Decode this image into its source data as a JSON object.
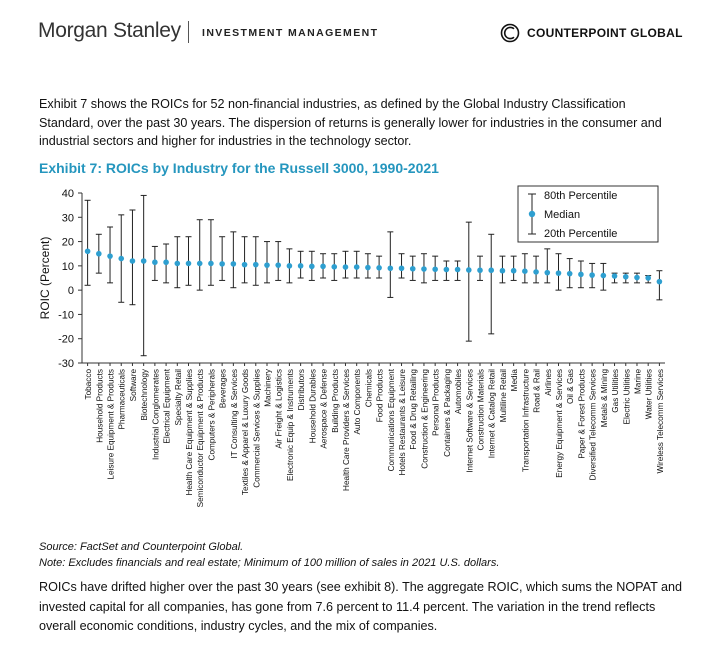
{
  "header": {
    "brand": "Morgan Stanley",
    "division": "INVESTMENT MANAGEMENT",
    "partner": "COUNTERPOINT GLOBAL"
  },
  "intro_text": "Exhibit 7 shows the ROICs for 52 non-financial industries, as defined by the Global Industry Classification Standard, over the past 30 years. The dispersion of returns is generally lower for industries in the consumer and industrial sectors and higher for industries in the technology sector.",
  "exhibit_title": "Exhibit 7: ROICs by Industry for the Russell 3000, 1990-2021",
  "source_note": "Source: FactSet and Counterpoint Global.",
  "note": "Note: Excludes financials and real estate; Minimum of 100 million of sales in 2021 U.S. dollars.",
  "outro_text": "ROICs have drifted higher over the past 30 years (see exhibit 8). The aggregate ROIC, which sums the NOPAT and invested capital for all companies, has gone from 7.6 percent to 11.4 percent. The variation in the trend reflects overall economic conditions, industry cycles, and the mix of companies.",
  "colors": {
    "median": "#2e9fd0",
    "whisker": "#222222",
    "title": "#2596be"
  },
  "chart_data": {
    "type": "errorbar",
    "ylabel": "ROIC (Percent)",
    "ylim": [
      -30,
      40
    ],
    "yticks": [
      -30,
      -20,
      -10,
      0,
      10,
      20,
      30,
      40
    ],
    "legend": {
      "position": "top-right",
      "p80": "80th Percentile",
      "median": "Median",
      "p20": "20th Percentile"
    },
    "categories": [
      "Tobacco",
      "Household Products",
      "Leisure Equipment & Products",
      "Pharmaceuticals",
      "Software",
      "Biotechnology",
      "Industrial Conglomerates",
      "Electrical Equipment",
      "Specialty Retail",
      "Health Care Equipment & Supplies",
      "Semiconductor Equipment & Products",
      "Computers & Peripherals",
      "Beverages",
      "IT Consulting & Services",
      "Textiles & Apparel & Luxury Goods",
      "Commercial Services & Supplies",
      "Machinery",
      "Air Freight & Logistics",
      "Electronic Equip & Instruments",
      "Distributors",
      "Household Durables",
      "Aerospace & Defense",
      "Building Products",
      "Health Care Providers & Services",
      "Auto Components",
      "Chemicals",
      "Food Products",
      "Communications Equipment",
      "Hotels Restaurants & Leisure",
      "Food & Drug Retailing",
      "Construction & Engineering",
      "Personal Products",
      "Containers & Packaging",
      "Automobiles",
      "Internet Software & Services",
      "Construction Materials",
      "Internet & Catalog Retail",
      "Multiline Retail",
      "Media",
      "Transportation Infrastructure",
      "Road & Rail",
      "Airlines",
      "Energy Equipment & Services",
      "Oil & Gas",
      "Paper & Forest Products",
      "Diversified Telecomm Services",
      "Metals & Mining",
      "Gas Utilities",
      "Electric Utilities",
      "Marine",
      "Water Utilities",
      "Wireless Telecomm Services"
    ],
    "series": [
      {
        "name": "80th Percentile",
        "values": [
          37,
          23,
          26,
          31,
          33,
          39,
          18,
          19,
          22,
          22,
          29,
          29,
          22,
          24,
          22,
          22,
          20,
          20,
          17,
          16,
          16,
          15,
          15,
          16,
          16,
          15,
          14,
          24,
          15,
          14,
          15,
          14,
          12,
          12,
          28,
          14,
          23,
          14,
          14,
          15,
          14,
          17,
          15,
          13,
          12,
          11,
          11,
          7,
          7,
          7,
          6,
          8
        ]
      },
      {
        "name": "Median",
        "values": [
          16,
          15,
          14,
          13,
          12,
          12,
          11.5,
          11.5,
          11,
          11,
          11,
          11,
          10.8,
          10.8,
          10.5,
          10.5,
          10.3,
          10.3,
          10,
          10,
          9.8,
          9.8,
          9.6,
          9.5,
          9.5,
          9.3,
          9.2,
          9,
          9,
          8.8,
          8.7,
          8.6,
          8.5,
          8.5,
          8.3,
          8.2,
          8.2,
          8,
          8,
          7.8,
          7.5,
          7.2,
          7,
          6.8,
          6.5,
          6.2,
          6,
          5.8,
          5.5,
          5.2,
          5,
          3.5
        ]
      },
      {
        "name": "20th Percentile",
        "values": [
          2,
          7,
          3,
          -5,
          -6,
          -27,
          4,
          3,
          1,
          2,
          0,
          2,
          4,
          1,
          3,
          2,
          3,
          4,
          3,
          5,
          4,
          5,
          4,
          5,
          5,
          5,
          5,
          -3,
          5,
          4,
          3,
          4,
          4,
          4,
          -21,
          4,
          -18,
          3,
          4,
          3,
          3,
          3,
          0,
          1,
          1,
          1,
          0,
          3,
          3,
          3,
          3,
          -4
        ]
      }
    ]
  }
}
